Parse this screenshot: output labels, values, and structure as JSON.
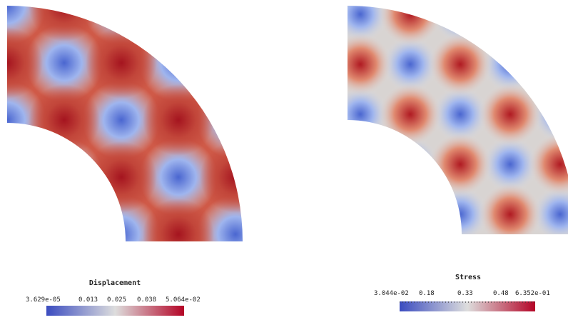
{
  "panels": [
    {
      "title": "Displacement",
      "colorbar_labels": [
        "3.629e-05",
        "0.013",
        "0.025",
        "0.038",
        "5.064e-02"
      ]
    },
    {
      "title": "Stress",
      "colorbar_labels": [
        "3.044e-02",
        "0.18",
        "0.33",
        "0.48",
        "6.352e-01"
      ]
    }
  ]
}
